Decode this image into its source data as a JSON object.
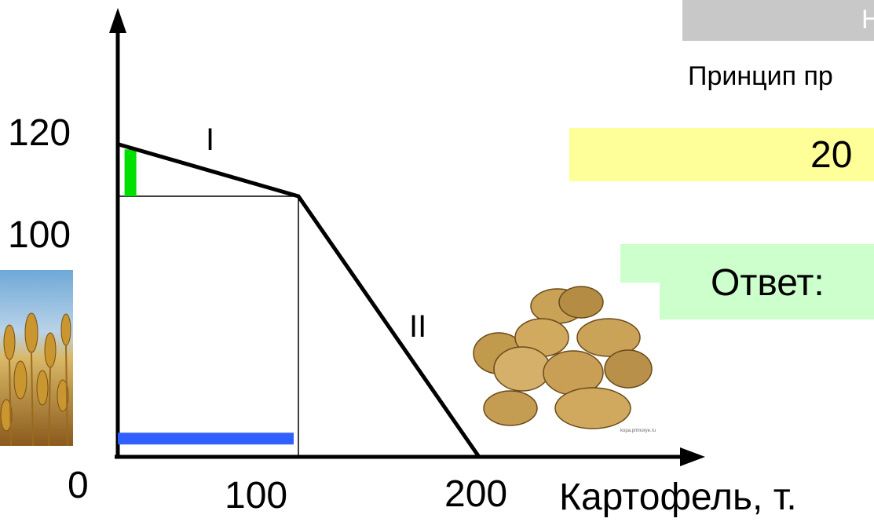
{
  "header": {
    "banner_text": "Н"
  },
  "principle": {
    "text": "Принцип пр"
  },
  "answer_calc": {
    "text": "20"
  },
  "answer": {
    "label": "Ответ:"
  },
  "colors": {
    "axis": "#000000",
    "green_bar": "#00e000",
    "blue_bar": "#3060ff",
    "yellow_box": "#ffff99",
    "green_box": "#ccffcc",
    "banner": "#c8c8c8"
  },
  "images": {
    "left_photo": "wheat-field",
    "right_photo": "potatoes-pile",
    "potato_caption": "kopa.primorye.ru"
  },
  "chart_data": {
    "type": "line",
    "xlabel": "Картофель, т.",
    "ylabel": "",
    "x_ticks": [
      "0",
      "100",
      "200"
    ],
    "y_ticks": [
      "120",
      "100"
    ],
    "xlim": [
      0,
      260
    ],
    "ylim": [
      0,
      150
    ],
    "series": [
      {
        "x": [
          0,
          100,
          200
        ],
        "y": [
          120,
          100,
          0
        ]
      }
    ],
    "guides": [
      {
        "from": [
          0,
          100
        ],
        "to": [
          100,
          100
        ]
      },
      {
        "from": [
          100,
          100
        ],
        "to": [
          100,
          0
        ]
      }
    ],
    "segment_labels": [
      {
        "text": "I",
        "at": [
          56,
          115
        ]
      },
      {
        "text": "II",
        "at": [
          185,
          50
        ]
      }
    ],
    "highlight_bars": [
      {
        "name": "green",
        "axis": "y",
        "from": 100,
        "to": 118
      },
      {
        "name": "blue",
        "axis": "x",
        "from": 0,
        "to": 100
      }
    ]
  }
}
